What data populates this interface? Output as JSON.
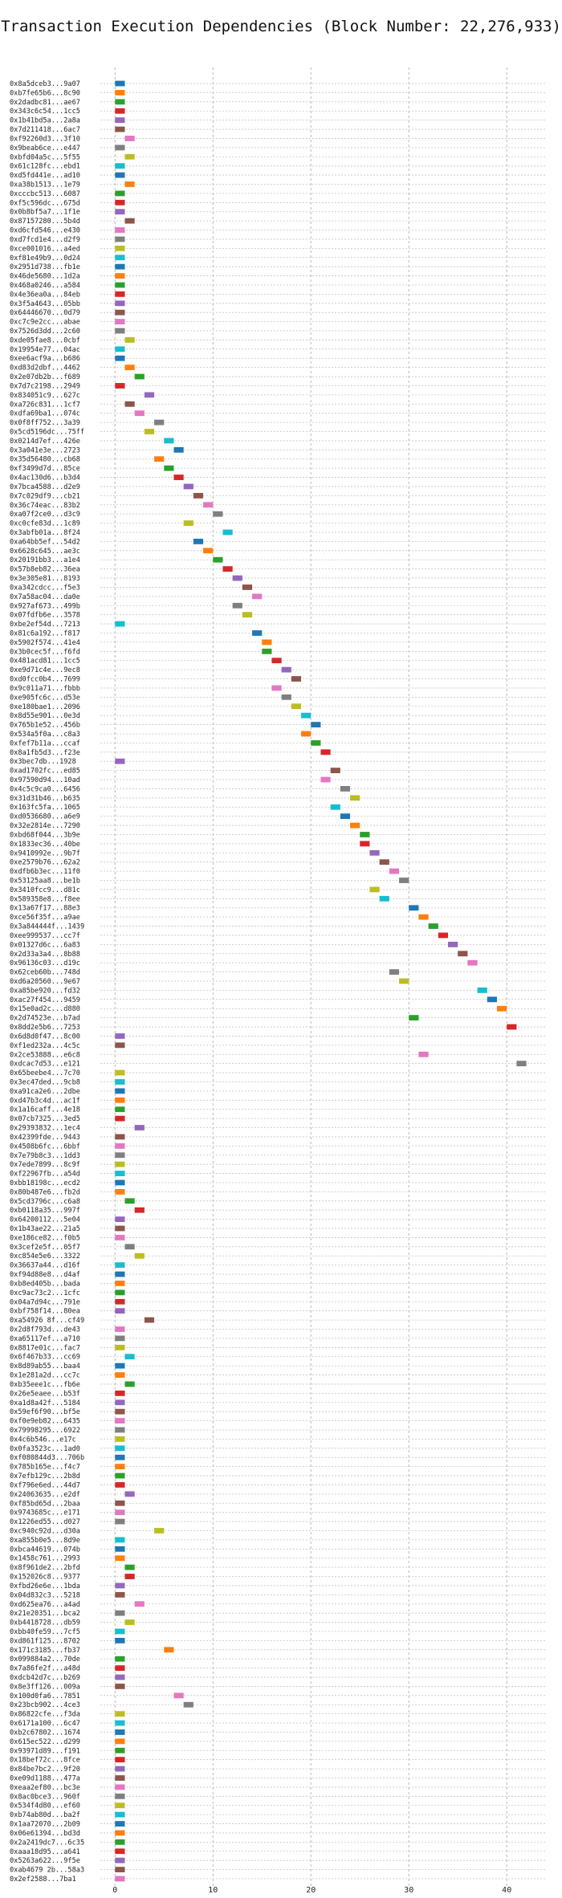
{
  "chart_data": {
    "type": "gantt",
    "title": "Transaction Execution Dependencies (Block Number: 22,276,933)",
    "xlabel": "",
    "ylabel": "",
    "xlim": [
      -1.5,
      44
    ],
    "xticks": [
      0,
      10,
      20,
      30,
      40
    ],
    "grid": true,
    "grid_style": "dotted",
    "palette": [
      "#1f77b4",
      "#ff7f0e",
      "#2ca02c",
      "#d62728",
      "#9467bd",
      "#8c564b",
      "#e377c2",
      "#7f7f7f",
      "#bcbd22",
      "#17becf"
    ],
    "transactions": [
      {
        "label": "0x8a5dceb3...9a07",
        "start": 0
      },
      {
        "label": "0xb7fe65b6...8c90",
        "start": 0
      },
      {
        "label": "0x2dadbc81...ae67",
        "start": 0
      },
      {
        "label": "0x343c6c54...1cc5",
        "start": 0
      },
      {
        "label": "0x1b41bd5a...2a8a",
        "start": 0
      },
      {
        "label": "0x7d211418...6ac7",
        "start": 0
      },
      {
        "label": "0xf92260d3...3f10",
        "start": 1
      },
      {
        "label": "0x9beab6ce...e447",
        "start": 0
      },
      {
        "label": "0xbfd04a5c...5f55",
        "start": 1
      },
      {
        "label": "0x61c128fc...ebd1",
        "start": 0
      },
      {
        "label": "0xd5fd441e...ad10",
        "start": 0
      },
      {
        "label": "0xa38b1513...1e79",
        "start": 1
      },
      {
        "label": "0xcccbc513...6087",
        "start": 0
      },
      {
        "label": "0xf5c596dc...675d",
        "start": 0
      },
      {
        "label": "0x0b8bf5a7...1f1e",
        "start": 0
      },
      {
        "label": "0x87157280...5b4d",
        "start": 1
      },
      {
        "label": "0xd6cfd546...e430",
        "start": 0
      },
      {
        "label": "0xd7fcd1e4...d2f9",
        "start": 0
      },
      {
        "label": "0xce001016...a4ed",
        "start": 0
      },
      {
        "label": "0xf81e49b9...0d24",
        "start": 0
      },
      {
        "label": "0x2951d738...fb1e",
        "start": 0
      },
      {
        "label": "0x46de5680...1d2a",
        "start": 0
      },
      {
        "label": "0x468a0246...a584",
        "start": 0
      },
      {
        "label": "0x4e36ea0a...84eb",
        "start": 0
      },
      {
        "label": "0x3f5a4643...05bb",
        "start": 0
      },
      {
        "label": "0x64446670...0d79",
        "start": 0
      },
      {
        "label": "0xc7c9e2cc...abae",
        "start": 0
      },
      {
        "label": "0x7526d3dd...2c60",
        "start": 0
      },
      {
        "label": "0xde05fae8...0cbf",
        "start": 1
      },
      {
        "label": "0x19954e77...04ac",
        "start": 0
      },
      {
        "label": "0xee6acf9a...b686",
        "start": 0
      },
      {
        "label": "0xd83d2dbf...4462",
        "start": 1
      },
      {
        "label": "0x2e07db2b...f689",
        "start": 2
      },
      {
        "label": "0x7d7c2198...2949",
        "start": 0
      },
      {
        "label": "0x834051c9...627c",
        "start": 3
      },
      {
        "label": "0xa726c831...1cf7",
        "start": 1
      },
      {
        "label": "0xdfa69ba1...074c",
        "start": 2
      },
      {
        "label": "0x0f8ff752...3a39",
        "start": 4
      },
      {
        "label": "0x5cd5196dc...75ff",
        "start": 3
      },
      {
        "label": "0x0214d7ef...426e",
        "start": 5
      },
      {
        "label": "0x3a041e3e...2723",
        "start": 6
      },
      {
        "label": "0x35d56480...cb68",
        "start": 4
      },
      {
        "label": "0xf3499d7d...85ce",
        "start": 5
      },
      {
        "label": "0x4ac130d6...b3d4",
        "start": 6
      },
      {
        "label": "0x7bca4588...d2e9",
        "start": 7
      },
      {
        "label": "0x7c029df9...cb21",
        "start": 8
      },
      {
        "label": "0x36c74eac...83b2",
        "start": 9
      },
      {
        "label": "0xa07f2ce0...d3c9",
        "start": 10
      },
      {
        "label": "0xc0cfe83d...1c89",
        "start": 7
      },
      {
        "label": "0x3abfb01a...8f24",
        "start": 11
      },
      {
        "label": "0xa64bb5ef...54d2",
        "start": 8
      },
      {
        "label": "0x6628c645...ae3c",
        "start": 9
      },
      {
        "label": "0x20191bb3...a1e4",
        "start": 10
      },
      {
        "label": "0x57b8eb82...36ea",
        "start": 11
      },
      {
        "label": "0x3e305e81...8193",
        "start": 12
      },
      {
        "label": "0xa342cdcc...f5e3",
        "start": 13
      },
      {
        "label": "0x7a58ac04...da0e",
        "start": 14
      },
      {
        "label": "0x927af673...499b",
        "start": 12
      },
      {
        "label": "0x07fdfb6e...3578",
        "start": 13
      },
      {
        "label": "0xbe2ef54d...7213",
        "start": 0
      },
      {
        "label": "0x81c6a192...f817",
        "start": 14
      },
      {
        "label": "0x5902f574...41e4",
        "start": 15
      },
      {
        "label": "0x3b0cec5f...f6fd",
        "start": 15
      },
      {
        "label": "0x481acd81...1cc5",
        "start": 16
      },
      {
        "label": "0xe9d71c4e...9ec8",
        "start": 17
      },
      {
        "label": "0xd0fcc0b4...7699",
        "start": 18
      },
      {
        "label": "0x9c011a71...fbbb",
        "start": 16
      },
      {
        "label": "0xe905fc6c...d53e",
        "start": 17
      },
      {
        "label": "0xe180bae1...2096",
        "start": 18
      },
      {
        "label": "0x8d55e901...0e3d",
        "start": 19
      },
      {
        "label": "0x765b1e52...456b",
        "start": 20
      },
      {
        "label": "0x534a5f0a...c8a3",
        "start": 19
      },
      {
        "label": "0xfef7b11a...ccaf",
        "start": 20
      },
      {
        "label": "0x8a1fb5d3...f23e",
        "start": 21
      },
      {
        "label": "0x3bec7db...1928",
        "start": 0
      },
      {
        "label": "0xad1702fc...ed85",
        "start": 22
      },
      {
        "label": "0x97590d94...10ad",
        "start": 21
      },
      {
        "label": "0x4c5c9ca0...6456",
        "start": 23
      },
      {
        "label": "0x31d31b46...b635",
        "start": 24
      },
      {
        "label": "0x163fc5fa...1065",
        "start": 22
      },
      {
        "label": "0xd0536680...a6e9",
        "start": 23
      },
      {
        "label": "0x32e2814e...7290",
        "start": 24
      },
      {
        "label": "0xbd68f044...3b9e",
        "start": 25
      },
      {
        "label": "0x1833ec36...40be",
        "start": 25
      },
      {
        "label": "0x9410992e...9b7f",
        "start": 26
      },
      {
        "label": "0xe2579b76...62a2",
        "start": 27
      },
      {
        "label": "0xdfb6b3ec...11f0",
        "start": 28
      },
      {
        "label": "0x53125aa8...be1b",
        "start": 29
      },
      {
        "label": "0x3410fcc9...d81c",
        "start": 26
      },
      {
        "label": "0x589358e8...f8ee",
        "start": 27
      },
      {
        "label": "0x13a67f17...88e3",
        "start": 30
      },
      {
        "label": "0xce56f35f...a9ae",
        "start": 31
      },
      {
        "label": "0x3a844444f...1439",
        "start": 32
      },
      {
        "label": "0xee999537...cc7f",
        "start": 33
      },
      {
        "label": "0x01327d6c...6a83",
        "start": 34
      },
      {
        "label": "0x2d33a3a4...8b88",
        "start": 35
      },
      {
        "label": "0x96136c03...d19c",
        "start": 36
      },
      {
        "label": "0x62ceb60b...748d",
        "start": 28
      },
      {
        "label": "0xd6a20560...9e67",
        "start": 29
      },
      {
        "label": "0xa85be920...fd32",
        "start": 37
      },
      {
        "label": "0xac27f454...9459",
        "start": 38
      },
      {
        "label": "0x15e0ad2c...d880",
        "start": 39
      },
      {
        "label": "0x2d74523e...b7ad",
        "start": 30
      },
      {
        "label": "0x8dd2e5b6...7253",
        "start": 40
      },
      {
        "label": "0x6d8d0f47...8c00",
        "start": 0
      },
      {
        "label": "0xf1ed232a...4c5c",
        "start": 0
      },
      {
        "label": "0x2ce53888...e6c8",
        "start": 31
      },
      {
        "label": "0xdcac7d53...e121",
        "start": 41
      },
      {
        "label": "0x65beebe4...7c70",
        "start": 0
      },
      {
        "label": "0x3ec47ded...9cb8",
        "start": 0
      },
      {
        "label": "0xa91ca2e6...2dbe",
        "start": 0
      },
      {
        "label": "0xd47b3c4d...ac1f",
        "start": 0
      },
      {
        "label": "0x1a16caff...4e18",
        "start": 0
      },
      {
        "label": "0x07cb7325...3ed5",
        "start": 0
      },
      {
        "label": "0x29393832...1ec4",
        "start": 2
      },
      {
        "label": "0x42399fde...9443",
        "start": 0
      },
      {
        "label": "0x4508b6fc...6bbf",
        "start": 0
      },
      {
        "label": "0x7e79b8c3...1dd3",
        "start": 0
      },
      {
        "label": "0x7ede7899...8c9f",
        "start": 0
      },
      {
        "label": "0xf22967fb...a54d",
        "start": 0
      },
      {
        "label": "0xbb18198c...ecd2",
        "start": 0
      },
      {
        "label": "0x80b487e6...fb2d",
        "start": 0
      },
      {
        "label": "0x5cd3796c...c6a8",
        "start": 1
      },
      {
        "label": "0xb0118a35...997f",
        "start": 2
      },
      {
        "label": "0x64200112...5e04",
        "start": 0
      },
      {
        "label": "0x1b43ae22...21a5",
        "start": 0
      },
      {
        "label": "0xe186ce82...f0b5",
        "start": 0
      },
      {
        "label": "0x3cef2e5f...05f7",
        "start": 1
      },
      {
        "label": "0xc854e5e6...3322",
        "start": 2
      },
      {
        "label": "0x36637a44...d16f",
        "start": 0
      },
      {
        "label": "0xf94d88e8...d4af",
        "start": 0
      },
      {
        "label": "0xb8ed405b...bada",
        "start": 0
      },
      {
        "label": "0xc9ac73c2...1cfc",
        "start": 0
      },
      {
        "label": "0x04a7d94c...791e",
        "start": 0
      },
      {
        "label": "0xbf758f14...80ea",
        "start": 0
      },
      {
        "label": "0xa54926 8f...cf49",
        "start": 3
      },
      {
        "label": "0x2d8f793d...de43",
        "start": 0
      },
      {
        "label": "0xa65117ef...a710",
        "start": 0
      },
      {
        "label": "0x8817e01c...fac7",
        "start": 0
      },
      {
        "label": "0x6f467b33...cc69",
        "start": 1
      },
      {
        "label": "0x8d89ab55...baa4",
        "start": 0
      },
      {
        "label": "0x1e281a2d...cc7c",
        "start": 0
      },
      {
        "label": "0xb35eee1c...fb6e",
        "start": 1
      },
      {
        "label": "0x26e5eaee...b53f",
        "start": 0
      },
      {
        "label": "0xa1d8a42f...5184",
        "start": 0
      },
      {
        "label": "0x59ef6f90...bf5e",
        "start": 0
      },
      {
        "label": "0xf0e9eb82...6435",
        "start": 0
      },
      {
        "label": "0x79998295...6922",
        "start": 0
      },
      {
        "label": "0x4c6b546...e17c",
        "start": 0
      },
      {
        "label": "0x0fa3523c...1ad0",
        "start": 0
      },
      {
        "label": "0xf080844d3...706b",
        "start": 0
      },
      {
        "label": "0x785b165e...f4c7",
        "start": 0
      },
      {
        "label": "0x7efb129c...2b8d",
        "start": 0
      },
      {
        "label": "0xf796e6ed...44d7",
        "start": 0
      },
      {
        "label": "0x24063635...e2df",
        "start": 1
      },
      {
        "label": "0xf85bd65d...2baa",
        "start": 0
      },
      {
        "label": "0x9743685c...e171",
        "start": 0
      },
      {
        "label": "0x1226ed55...d027",
        "start": 0
      },
      {
        "label": "0xc940c92d...d30a",
        "start": 4
      },
      {
        "label": "0xa855b0e5...8d9e",
        "start": 0
      },
      {
        "label": "0xbca44619...074b",
        "start": 0
      },
      {
        "label": "0x1458c761...2993",
        "start": 0
      },
      {
        "label": "0x8f961de2...2bfd",
        "start": 1
      },
      {
        "label": "0x152026c8...9377",
        "start": 1
      },
      {
        "label": "0xfbd26e6e...1bda",
        "start": 0
      },
      {
        "label": "0x04d832c3...5218",
        "start": 0
      },
      {
        "label": "0xd625ea76...a4ad",
        "start": 2
      },
      {
        "label": "0x21e20351...bca2",
        "start": 0
      },
      {
        "label": "0xb4418728...db59",
        "start": 1
      },
      {
        "label": "0xbb40fe59...7cf5",
        "start": 0
      },
      {
        "label": "0xd861f125...8702",
        "start": 0
      },
      {
        "label": "0x171c3185...fb37",
        "start": 5
      },
      {
        "label": "0x099884a2...70de",
        "start": 0
      },
      {
        "label": "0x7a86fe2f...a48d",
        "start": 0
      },
      {
        "label": "0xdcb42d7c...b269",
        "start": 0
      },
      {
        "label": "0x8e3ff126...009a",
        "start": 0
      },
      {
        "label": "0x100d0fa6...7851",
        "start": 6
      },
      {
        "label": "0x23bcb902...4ce3",
        "start": 7
      },
      {
        "label": "0x86822cfe...f3da",
        "start": 0
      },
      {
        "label": "0x6171a100...6c47",
        "start": 0
      },
      {
        "label": "0xb2c67802...1674",
        "start": 0
      },
      {
        "label": "0x615ec522...d299",
        "start": 0
      },
      {
        "label": "0x93971d89...f191",
        "start": 0
      },
      {
        "label": "0x18bef72c...8fce",
        "start": 0
      },
      {
        "label": "0x84be7bc2...9f20",
        "start": 0
      },
      {
        "label": "0xe09d1188...477a",
        "start": 0
      },
      {
        "label": "0xeaa2ef80...bc3e",
        "start": 0
      },
      {
        "label": "0x8ac0bce3...960f",
        "start": 0
      },
      {
        "label": "0x534f4d80...ef60",
        "start": 0
      },
      {
        "label": "0xb74ab80d...ba2f",
        "start": 0
      },
      {
        "label": "0x1aa72070...2b09",
        "start": 0
      },
      {
        "label": "0x06e61394...bd3d",
        "start": 0
      },
      {
        "label": "0x2a2419dc7...6c35",
        "start": 0
      },
      {
        "label": "0xaaa18d95...a641",
        "start": 0
      },
      {
        "label": "0x5263a622...9f5e",
        "start": 0
      },
      {
        "label": "0xab4679 2b...58a3",
        "start": 0
      },
      {
        "label": "0x2ef2588...7ba1",
        "start": 0
      }
    ]
  }
}
